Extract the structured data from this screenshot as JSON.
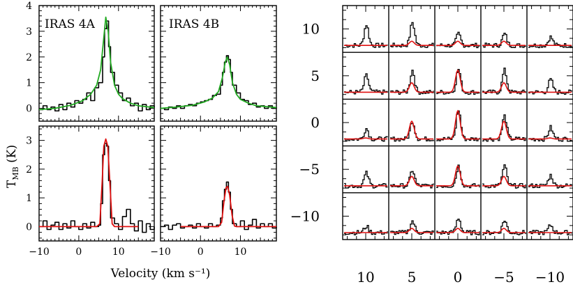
{
  "chart_data": [
    {
      "type": "line",
      "panel": "top-left",
      "label": "IRAS 4A",
      "xlim": [
        -10,
        19
      ],
      "ylim": [
        -0.5,
        4
      ],
      "yticks": [
        "0",
        "1",
        "2",
        "3",
        "4"
      ],
      "xticks": [
        -10,
        0,
        10
      ],
      "series": [
        {
          "color": "#000000",
          "style": "steps",
          "points": [
            [
              -10,
              -0.05
            ],
            [
              -9,
              0.1
            ],
            [
              -8,
              -0.05
            ],
            [
              -7,
              0.05
            ],
            [
              -6,
              -0.1
            ],
            [
              -5,
              0.15
            ],
            [
              -4,
              -0.05
            ],
            [
              -3,
              0.2
            ],
            [
              -2,
              0.05
            ],
            [
              -1,
              0.3
            ],
            [
              0,
              0.2
            ],
            [
              1,
              0.35
            ],
            [
              2,
              0.6
            ],
            [
              3,
              0.3
            ],
            [
              4,
              0.8
            ],
            [
              5,
              1.0
            ],
            [
              6,
              2.0
            ],
            [
              6.5,
              3.1
            ],
            [
              7,
              3.4
            ],
            [
              7.5,
              2.4
            ],
            [
              8,
              1.4
            ],
            [
              9,
              0.9
            ],
            [
              10,
              0.6
            ],
            [
              11,
              0.3
            ],
            [
              12,
              0.4
            ],
            [
              13,
              0.1
            ],
            [
              14,
              0.2
            ],
            [
              15,
              -0.1
            ],
            [
              16,
              0.15
            ],
            [
              17,
              -0.05
            ],
            [
              18,
              0.1
            ],
            [
              19,
              0.0
            ]
          ]
        },
        {
          "color": "#22aa22",
          "style": "smooth",
          "points": [
            [
              -10,
              -0.05
            ],
            [
              -6,
              0.0
            ],
            [
              -2,
              0.12
            ],
            [
              1,
              0.3
            ],
            [
              3,
              0.55
            ],
            [
              4.5,
              0.9
            ],
            [
              5.5,
              1.5
            ],
            [
              6.2,
              2.6
            ],
            [
              6.8,
              3.55
            ],
            [
              7.4,
              3.0
            ],
            [
              8,
              1.8
            ],
            [
              9,
              0.9
            ],
            [
              10,
              0.55
            ],
            [
              11,
              0.38
            ],
            [
              13,
              0.2
            ],
            [
              15,
              0.1
            ],
            [
              19,
              0.03
            ]
          ]
        }
      ]
    },
    {
      "type": "line",
      "panel": "top-right",
      "label": "IRAS 4B",
      "xlim": [
        -10,
        19
      ],
      "ylim": [
        -0.5,
        4
      ],
      "xticks": [
        -10,
        0,
        10
      ],
      "series": [
        {
          "color": "#000000",
          "style": "steps",
          "points": [
            [
              -10,
              0.0
            ],
            [
              -9,
              -0.05
            ],
            [
              -8,
              0.05
            ],
            [
              -7,
              0.0
            ],
            [
              -6,
              0.1
            ],
            [
              -5,
              0.0
            ],
            [
              -4,
              0.1
            ],
            [
              -3,
              0.15
            ],
            [
              -2,
              0.1
            ],
            [
              -1,
              0.2
            ],
            [
              0,
              0.25
            ],
            [
              1,
              0.3
            ],
            [
              2,
              0.35
            ],
            [
              3,
              0.5
            ],
            [
              4,
              0.55
            ],
            [
              5,
              0.9
            ],
            [
              5.5,
              1.4
            ],
            [
              6,
              1.8
            ],
            [
              6.5,
              2.05
            ],
            [
              7,
              1.9
            ],
            [
              7.5,
              1.4
            ],
            [
              8,
              0.9
            ],
            [
              9,
              0.6
            ],
            [
              10,
              0.35
            ],
            [
              11,
              0.3
            ],
            [
              12,
              0.15
            ],
            [
              13,
              0.2
            ],
            [
              14,
              0.05
            ],
            [
              15,
              0.1
            ],
            [
              16,
              0.0
            ],
            [
              17,
              0.1
            ],
            [
              18,
              0.0
            ],
            [
              19,
              0.05
            ]
          ]
        },
        {
          "color": "#22aa22",
          "style": "smooth",
          "points": [
            [
              -10,
              0.0
            ],
            [
              -6,
              0.05
            ],
            [
              -2,
              0.12
            ],
            [
              1,
              0.25
            ],
            [
              3,
              0.4
            ],
            [
              4.5,
              0.65
            ],
            [
              5.5,
              1.2
            ],
            [
              6.2,
              1.8
            ],
            [
              6.7,
              2.0
            ],
            [
              7.3,
              1.7
            ],
            [
              8,
              1.0
            ],
            [
              9,
              0.55
            ],
            [
              10,
              0.35
            ],
            [
              12,
              0.2
            ],
            [
              14,
              0.1
            ],
            [
              19,
              0.03
            ]
          ]
        }
      ]
    },
    {
      "type": "line",
      "panel": "bottom-left",
      "xlabel": "Velocity (km s⁻¹)",
      "ylabel": "T",
      "ylabel_sub": "MB",
      "ylabel_unit": " (K)",
      "xlim": [
        -10,
        19
      ],
      "ylim": [
        -0.5,
        3.5
      ],
      "yticks": [
        "0",
        "1",
        "2",
        "3"
      ],
      "xticks": [
        "−10",
        "0",
        "10"
      ],
      "series": [
        {
          "color": "#000000",
          "style": "steps",
          "points": [
            [
              -10,
              0.0
            ],
            [
              -9,
              0.2
            ],
            [
              -8,
              -0.1
            ],
            [
              -7,
              0.05
            ],
            [
              -6,
              0.15
            ],
            [
              -5,
              -0.1
            ],
            [
              -4,
              0.1
            ],
            [
              -3,
              -0.05
            ],
            [
              -2,
              0.2
            ],
            [
              -1,
              0.0
            ],
            [
              0,
              -0.1
            ],
            [
              1,
              0.1
            ],
            [
              2,
              -0.05
            ],
            [
              3,
              0.15
            ],
            [
              4,
              0.0
            ],
            [
              5,
              0.05
            ],
            [
              5.5,
              0.8
            ],
            [
              6,
              2.5
            ],
            [
              6.5,
              2.9
            ],
            [
              7,
              2.8
            ],
            [
              7.5,
              1.6
            ],
            [
              8,
              0.3
            ],
            [
              9,
              0.1
            ],
            [
              10,
              -0.1
            ],
            [
              11,
              0.35
            ],
            [
              12,
              0.6
            ],
            [
              13,
              0.1
            ],
            [
              14,
              -0.15
            ],
            [
              15,
              0.2
            ],
            [
              16,
              -0.2
            ],
            [
              17,
              0.1
            ],
            [
              18,
              -0.1
            ],
            [
              19,
              0.0
            ]
          ]
        },
        {
          "color": "#e01010",
          "style": "smooth",
          "points": [
            [
              -10,
              0.0
            ],
            [
              4.5,
              0.0
            ],
            [
              5.3,
              0.1
            ],
            [
              5.9,
              1.6
            ],
            [
              6.3,
              2.8
            ],
            [
              6.8,
              3.05
            ],
            [
              7.3,
              2.8
            ],
            [
              7.8,
              1.6
            ],
            [
              8.4,
              0.1
            ],
            [
              9,
              0.0
            ],
            [
              15,
              0.0
            ]
          ]
        }
      ]
    },
    {
      "type": "line",
      "panel": "bottom-right",
      "xlim": [
        -10,
        19
      ],
      "ylim": [
        -0.5,
        3.5
      ],
      "xticks": [
        "−10",
        "0",
        "10"
      ],
      "series": [
        {
          "color": "#000000",
          "style": "steps",
          "points": [
            [
              -10,
              0.0
            ],
            [
              -9,
              0.05
            ],
            [
              -8,
              -0.1
            ],
            [
              -7,
              0.05
            ],
            [
              -6,
              0.1
            ],
            [
              -5,
              -0.05
            ],
            [
              -4,
              0.0
            ],
            [
              -3,
              0.05
            ],
            [
              -2,
              -0.05
            ],
            [
              -1,
              0.1
            ],
            [
              0,
              0.0
            ],
            [
              1,
              -0.05
            ],
            [
              2,
              0.1
            ],
            [
              3,
              0.0
            ],
            [
              4,
              0.05
            ],
            [
              5,
              0.3
            ],
            [
              5.5,
              0.9
            ],
            [
              6,
              1.3
            ],
            [
              6.5,
              1.55
            ],
            [
              7,
              1.2
            ],
            [
              7.5,
              0.6
            ],
            [
              8,
              0.1
            ],
            [
              9,
              0.0
            ],
            [
              10,
              0.2
            ],
            [
              11,
              -0.1
            ],
            [
              12,
              0.05
            ],
            [
              13,
              0.25
            ],
            [
              14,
              -0.05
            ],
            [
              15,
              0.1
            ],
            [
              16,
              0.0
            ],
            [
              17,
              0.1
            ],
            [
              18,
              -0.05
            ],
            [
              19,
              0.0
            ]
          ]
        },
        {
          "color": "#e01010",
          "style": "smooth",
          "points": [
            [
              -5,
              0.0
            ],
            [
              4.5,
              0.0
            ],
            [
              5.3,
              0.15
            ],
            [
              5.9,
              0.9
            ],
            [
              6.4,
              1.35
            ],
            [
              6.8,
              1.4
            ],
            [
              7.3,
              1.1
            ],
            [
              7.9,
              0.4
            ],
            [
              8.5,
              0.02
            ],
            [
              9,
              0.0
            ],
            [
              19,
              0.0
            ]
          ]
        }
      ]
    },
    {
      "type": "line",
      "panel": "spectral-map",
      "description_type": "grid of spectra",
      "rows": 5,
      "cols": 5,
      "y_axis_labels": [
        "10",
        "5",
        "0",
        "−5",
        "−10"
      ],
      "x_axis_labels": [
        "10",
        "5",
        "0",
        "−5",
        "−10"
      ],
      "x_offsets": [
        10,
        5,
        0,
        -5,
        -10
      ],
      "y_offsets": [
        10,
        5,
        0,
        -5,
        -10
      ],
      "black_peaks": [
        [
          1.0,
          1.1,
          0.55,
          0.55,
          0.4
        ],
        [
          0.8,
          1.05,
          1.1,
          1.05,
          0.6
        ],
        [
          0.5,
          0.85,
          1.4,
          1.1,
          0.55
        ],
        [
          0.6,
          0.75,
          0.95,
          0.95,
          0.5
        ],
        [
          0.3,
          0.55,
          0.7,
          0.6,
          0.35
        ]
      ],
      "red_peaks": [
        [
          0.0,
          0.2,
          0.2,
          0.2,
          0.0
        ],
        [
          0.0,
          0.45,
          1.05,
          0.45,
          0.0
        ],
        [
          0.05,
          0.85,
          1.35,
          0.85,
          0.05
        ],
        [
          0.0,
          0.45,
          0.95,
          0.45,
          0.0
        ],
        [
          0.0,
          0.2,
          0.2,
          0.2,
          0.0
        ]
      ]
    }
  ]
}
